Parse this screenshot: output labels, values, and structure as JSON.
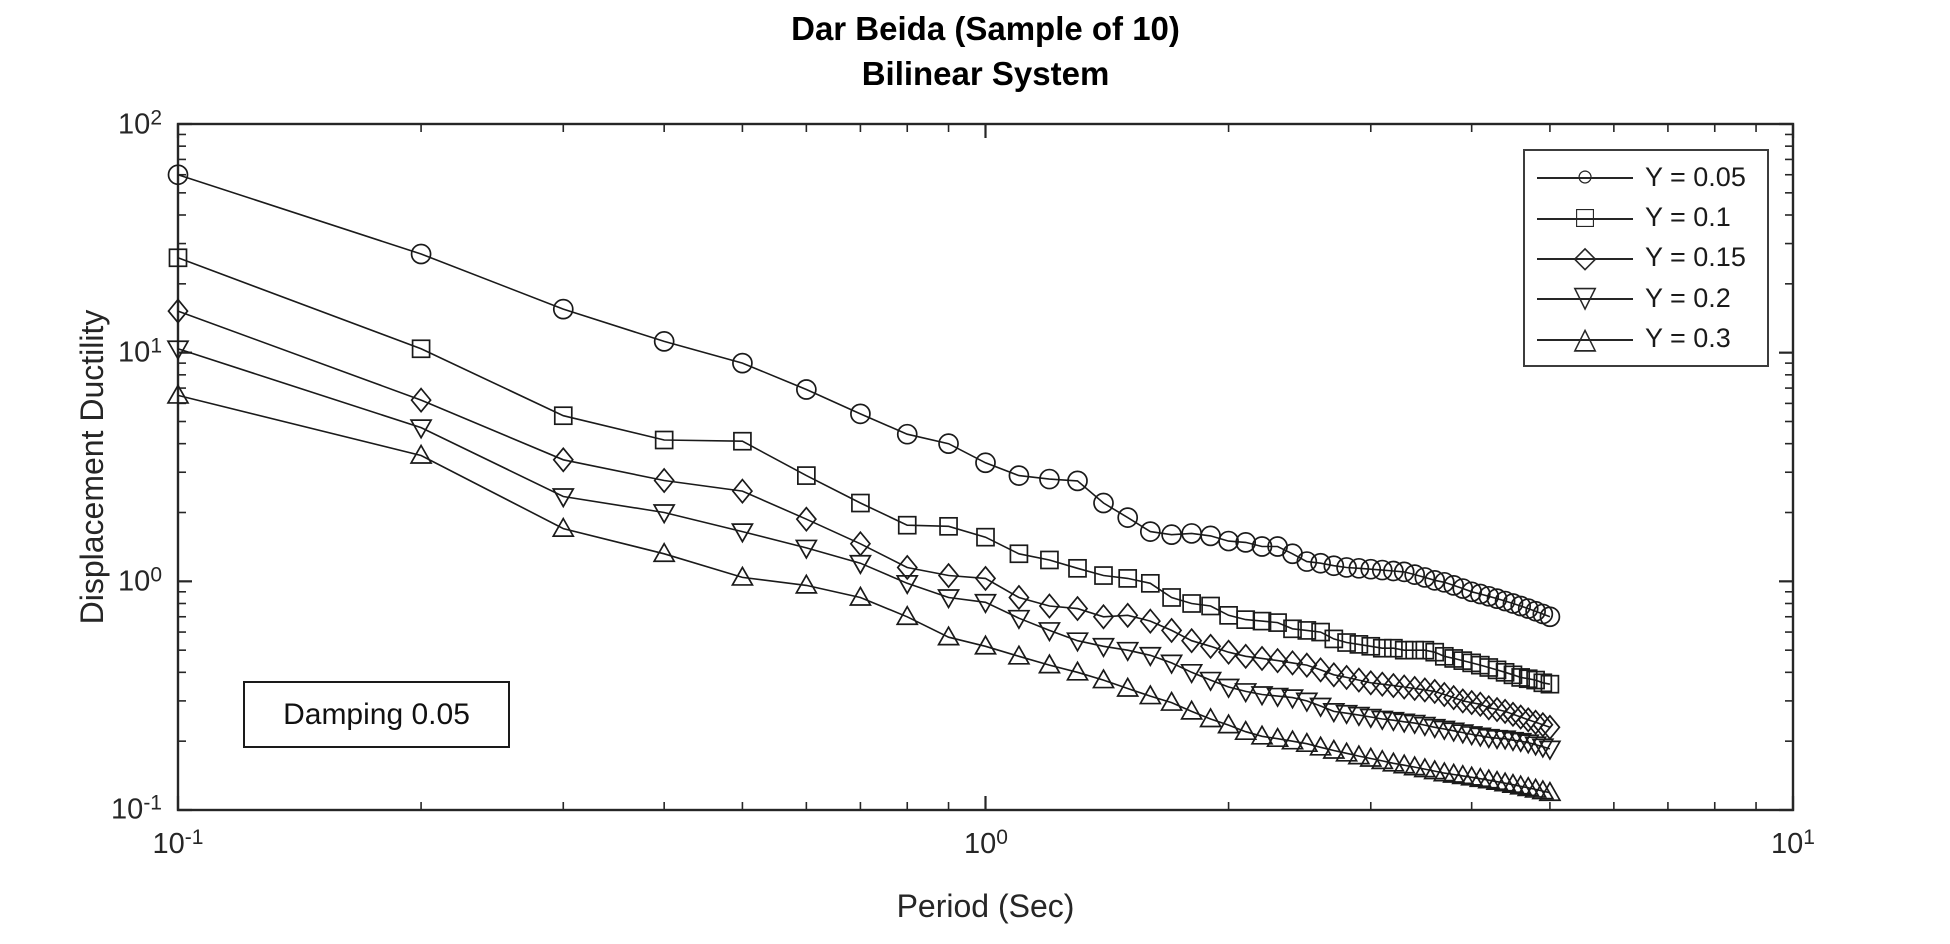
{
  "chart_data": {
    "type": "line",
    "title": "Dar Beida (Sample of 10)",
    "subtitle": "Bilinear System",
    "xlabel": "Period (Sec)",
    "ylabel": "Displacement Ductility",
    "annotation": "Damping 0.05",
    "xscale": "log",
    "yscale": "log",
    "xlim": [
      0.1,
      10
    ],
    "ylim": [
      0.1,
      100
    ],
    "grid": false,
    "legend_position": "upper right",
    "axis_color": "#262626",
    "line_color": "#1a1a1a",
    "x_ticks": [
      {
        "b": "10",
        "e": "-1"
      },
      {
        "b": "10",
        "e": "0"
      },
      {
        "b": "10",
        "e": "1"
      }
    ],
    "y_ticks": [
      {
        "b": "10",
        "e": "2"
      },
      {
        "b": "10",
        "e": "1"
      },
      {
        "b": "10",
        "e": "0"
      },
      {
        "b": "10",
        "e": "-1"
      }
    ],
    "x": [
      0.1,
      0.2,
      0.3,
      0.4,
      0.5,
      0.6,
      0.7,
      0.8,
      0.9,
      1.0,
      1.1,
      1.2,
      1.3,
      1.4,
      1.5,
      1.6,
      1.7,
      1.8,
      1.9,
      2.0,
      2.1,
      2.2,
      2.3,
      2.4,
      2.5,
      2.6,
      2.7,
      2.8,
      2.9,
      3.0,
      3.1,
      3.2,
      3.3,
      3.4,
      3.5,
      3.6,
      3.7,
      3.8,
      3.9,
      4.0,
      4.1,
      4.2,
      4.3,
      4.4,
      4.5,
      4.6,
      4.7,
      4.8,
      4.9,
      5.0
    ],
    "series": [
      {
        "name": "Y = 0.05",
        "marker": "circle",
        "glyph": "○",
        "values": [
          60,
          27,
          15.5,
          11.2,
          9,
          6.9,
          5.4,
          4.4,
          4,
          3.3,
          2.9,
          2.8,
          2.75,
          2.2,
          1.9,
          1.65,
          1.6,
          1.62,
          1.58,
          1.5,
          1.48,
          1.42,
          1.42,
          1.32,
          1.22,
          1.2,
          1.17,
          1.15,
          1.14,
          1.13,
          1.12,
          1.11,
          1.1,
          1.07,
          1.04,
          1.01,
          0.99,
          0.96,
          0.93,
          0.9,
          0.88,
          0.86,
          0.84,
          0.82,
          0.8,
          0.78,
          0.76,
          0.74,
          0.72,
          0.7
        ]
      },
      {
        "name": "Y = 0.1",
        "marker": "square",
        "glyph": "□",
        "values": [
          26,
          10.4,
          5.3,
          4.15,
          4.1,
          2.9,
          2.2,
          1.76,
          1.74,
          1.56,
          1.32,
          1.24,
          1.14,
          1.06,
          1.03,
          0.98,
          0.85,
          0.8,
          0.78,
          0.71,
          0.68,
          0.67,
          0.66,
          0.62,
          0.61,
          0.6,
          0.56,
          0.54,
          0.53,
          0.52,
          0.51,
          0.51,
          0.5,
          0.5,
          0.5,
          0.49,
          0.47,
          0.46,
          0.45,
          0.44,
          0.43,
          0.42,
          0.41,
          0.4,
          0.39,
          0.38,
          0.375,
          0.37,
          0.36,
          0.355
        ]
      },
      {
        "name": "Y = 0.15",
        "marker": "diamond",
        "glyph": "◇",
        "values": [
          15.2,
          6.2,
          3.4,
          2.76,
          2.48,
          1.87,
          1.46,
          1.15,
          1.06,
          1.03,
          0.85,
          0.78,
          0.76,
          0.7,
          0.71,
          0.67,
          0.61,
          0.55,
          0.52,
          0.49,
          0.47,
          0.46,
          0.45,
          0.44,
          0.43,
          0.41,
          0.39,
          0.38,
          0.37,
          0.36,
          0.355,
          0.35,
          0.345,
          0.34,
          0.335,
          0.33,
          0.32,
          0.31,
          0.3,
          0.295,
          0.29,
          0.28,
          0.275,
          0.27,
          0.262,
          0.255,
          0.248,
          0.242,
          0.236,
          0.23
        ]
      },
      {
        "name": "Y = 0.2",
        "marker": "triangle-down",
        "glyph": "▽",
        "values": [
          10.4,
          4.7,
          2.35,
          2,
          1.65,
          1.4,
          1.2,
          0.98,
          0.85,
          0.81,
          0.69,
          0.61,
          0.55,
          0.52,
          0.5,
          0.475,
          0.44,
          0.4,
          0.37,
          0.345,
          0.33,
          0.32,
          0.315,
          0.31,
          0.3,
          0.285,
          0.27,
          0.265,
          0.26,
          0.255,
          0.25,
          0.247,
          0.243,
          0.24,
          0.235,
          0.23,
          0.226,
          0.222,
          0.218,
          0.214,
          0.211,
          0.208,
          0.206,
          0.205,
          0.202,
          0.2,
          0.197,
          0.193,
          0.189,
          0.185
        ]
      },
      {
        "name": "Y = 0.3",
        "marker": "triangle-up",
        "glyph": "△",
        "values": [
          6.5,
          3.55,
          1.7,
          1.32,
          1.04,
          0.96,
          0.85,
          0.7,
          0.57,
          0.52,
          0.47,
          0.43,
          0.4,
          0.37,
          0.34,
          0.315,
          0.295,
          0.27,
          0.25,
          0.235,
          0.22,
          0.21,
          0.205,
          0.2,
          0.195,
          0.188,
          0.182,
          0.177,
          0.172,
          0.168,
          0.164,
          0.16,
          0.157,
          0.154,
          0.151,
          0.148,
          0.145,
          0.143,
          0.141,
          0.139,
          0.137,
          0.135,
          0.133,
          0.131,
          0.129,
          0.127,
          0.125,
          0.123,
          0.121,
          0.119
        ]
      }
    ]
  }
}
